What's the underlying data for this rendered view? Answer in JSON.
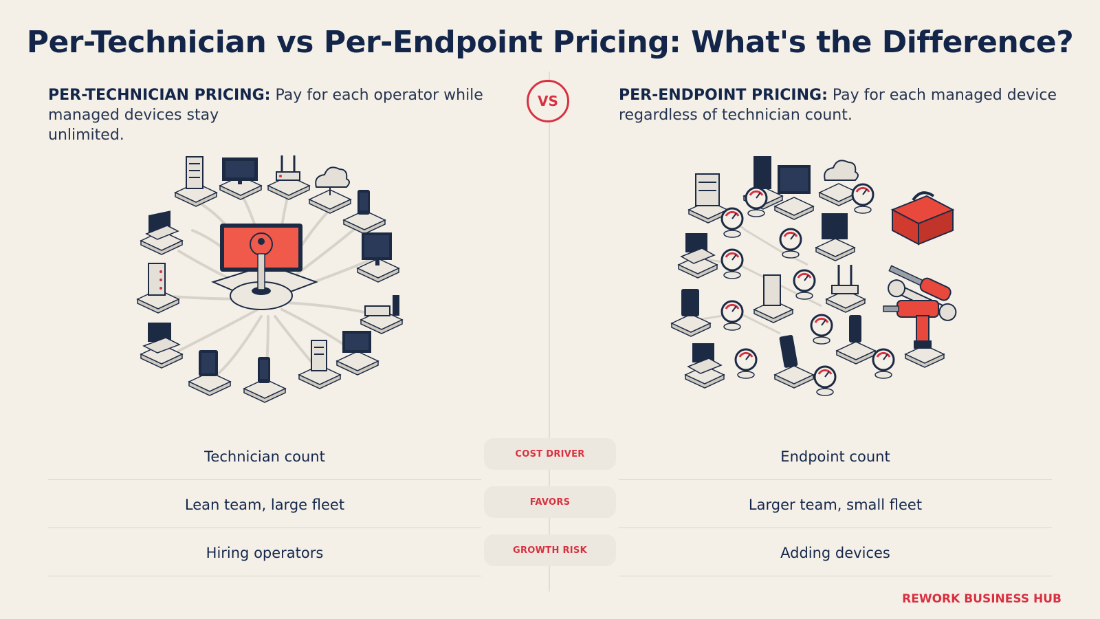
{
  "title": "Per-Technician vs Per-Endpoint Pricing: What's the Difference?",
  "vs_label": "VS",
  "left": {
    "heading": "PER-TECHNICIAN PRICING:",
    "description_line1": " Pay for each operator while",
    "description_line2": "managed devices stay",
    "description_line3": "unlimited."
  },
  "right": {
    "heading": "PER-ENDPOINT PRICING:",
    "description_line1": " Pay for each managed device",
    "description_line2": "regardless of technician count."
  },
  "comparison": [
    {
      "label": "COST DRIVER",
      "left": "Technician count",
      "right": "Endpoint count"
    },
    {
      "label": "FAVORS",
      "left": "Lean team, large fleet",
      "right": "Larger team, small fleet"
    },
    {
      "label": "GROWTH RISK",
      "left": "Hiring operators",
      "right": "Adding devices"
    }
  ],
  "brand": "REWORK BUSINESS HUB",
  "colors": {
    "background": "#f4f0e8",
    "navy": "#13264a",
    "accent_red": "#d93040",
    "device_screen": "#1c2a44",
    "platform": "#e8e4dc"
  },
  "icons": {
    "left_illustration": [
      "central-license-key-console-icon",
      "laptop-icon",
      "server-icon",
      "monitor-icon",
      "router-icon",
      "cloud-icon",
      "smartphone-icon",
      "tablet-icon",
      "nas-icon"
    ],
    "right_illustration": [
      "gauge-meter-icon",
      "laptop-icon",
      "server-icon",
      "monitor-icon",
      "router-icon",
      "cloud-icon",
      "smartphone-icon",
      "tablet-icon",
      "toolbox-icon",
      "screwdriver-icon",
      "wrench-icon",
      "drill-icon"
    ]
  }
}
